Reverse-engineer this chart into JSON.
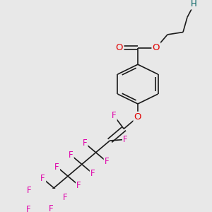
{
  "bg_color": "#e8e8e8",
  "bond_color": "#1a1a1a",
  "O_color": "#e00000",
  "H_color": "#006060",
  "F_color": "#e000aa",
  "line_width": 1.2,
  "dbo": 4.0,
  "font_size": 8.5,
  "fig_w": 3.0,
  "fig_h": 3.0,
  "dpi": 100,
  "xlim": [
    0,
    300
  ],
  "ylim": [
    0,
    300
  ]
}
